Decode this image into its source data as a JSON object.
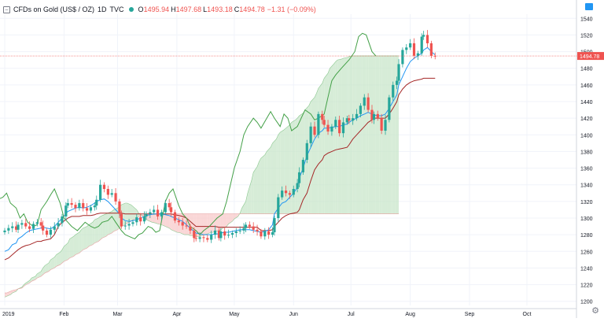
{
  "header": {
    "symbol": "CFDs on Gold (US$ / OZ)",
    "interval": "1D",
    "source": "TVC",
    "open_label": "O",
    "open": "1495.94",
    "high_label": "H",
    "high": "1497.68",
    "low_label": "L",
    "low": "1493.18",
    "close_label": "C",
    "close": "1494.78",
    "change": "−1.31 (−0.09%)"
  },
  "colors": {
    "up": "#26a69a",
    "down": "#ef5350",
    "tenkan": "#2196f3",
    "kijun": "#a52727",
    "lagging": "#43a047",
    "cloud_bull": "#c8e6c9",
    "cloud_bear": "#f8c9c9",
    "price_tag": "#ef5350",
    "grid": "#f0f3fa"
  },
  "icons": [
    "collapse-icon",
    "status-dot-icon",
    "gear-icon"
  ],
  "chart_data": {
    "type": "candlestick",
    "title": "CFDs on Gold (US$ / OZ)",
    "ylim": [
      1195,
      1545
    ],
    "y_ticks": [
      1200,
      1220,
      1240,
      1260,
      1280,
      1300,
      1320,
      1340,
      1360,
      1380,
      1400,
      1420,
      1440,
      1460,
      1480,
      1500,
      1520,
      1540
    ],
    "x_axis_labels": [
      "2019",
      "Feb",
      "Mar",
      "Apr",
      "May",
      "Jun",
      "Jul",
      "Aug",
      "Sep",
      "Oct"
    ],
    "x_axis_dates": [
      "2019-01-01",
      "2019-02-01",
      "2019-03-01",
      "2019-04-01",
      "2019-05-01",
      "2019-06-01",
      "2019-07-01",
      "2019-08-01",
      "2019-09-01",
      "2019-10-01"
    ],
    "last_price": "1494.78",
    "last_value": 1494.78,
    "grid": true,
    "candles": {
      "start_date": "2019-01-01",
      "bar_interval": "1D",
      "close": [
        1285,
        1288,
        1290,
        1286,
        1292,
        1294,
        1290,
        1287,
        1293,
        1295,
        1291,
        1285,
        1280,
        1286,
        1290,
        1294,
        1302,
        1315,
        1318,
        1316,
        1312,
        1318,
        1312,
        1309,
        1313,
        1315,
        1322,
        1340,
        1335,
        1328,
        1330,
        1320,
        1305,
        1290,
        1291,
        1293,
        1295,
        1301,
        1296,
        1302,
        1305,
        1307,
        1310,
        1302,
        1307,
        1318,
        1313,
        1307,
        1297,
        1295,
        1291,
        1290,
        1285,
        1276,
        1275,
        1277,
        1276,
        1274,
        1280,
        1285,
        1276,
        1284,
        1279,
        1280,
        1282,
        1284,
        1285,
        1288,
        1292,
        1290,
        1286,
        1284,
        1278,
        1284,
        1280,
        1283,
        1300,
        1325,
        1333,
        1330,
        1328,
        1335,
        1342,
        1355,
        1370,
        1390,
        1410,
        1400,
        1425,
        1418,
        1412,
        1404,
        1410,
        1418,
        1402,
        1415,
        1420,
        1417,
        1420,
        1425,
        1435,
        1445,
        1430,
        1418,
        1425,
        1420,
        1405,
        1418,
        1445,
        1460,
        1465,
        1485,
        1502,
        1505,
        1510,
        1495,
        1498,
        1518,
        1520,
        1510,
        1495,
        1494.78
      ]
    },
    "lagging_span": [
      1318,
      1322,
      1325,
      1330,
      1318,
      1312,
      1300,
      1305,
      1295,
      1290,
      1292,
      1310,
      1320,
      1328,
      1335,
      1318,
      1300,
      1295,
      1290,
      1285,
      1290,
      1295,
      1290,
      1288,
      1290,
      1295,
      1297,
      1302,
      1295,
      1285,
      1280,
      1278,
      1275,
      1280,
      1282,
      1290,
      1288,
      1283,
      1285,
      1320,
      1330,
      1335,
      1315,
      1305,
      1300,
      1290,
      1285,
      1280,
      1285,
      1290,
      1295,
      1300,
      1305,
      1320,
      1340,
      1360,
      1380,
      1400,
      1410,
      1420,
      1415,
      1408,
      1420,
      1428,
      1420,
      1410,
      1425,
      1420,
      1405,
      1410,
      1420,
      1430,
      1425,
      1418,
      1420,
      1425,
      1445,
      1465,
      1472,
      1480,
      1485,
      1490,
      1500,
      1518,
      1522,
      1520,
      1500,
      1494.78
    ],
    "lagging_start_date": "2018-12-26",
    "tenkan": {
      "start_date": "2019-01-01",
      "values": [
        1260,
        1262,
        1268,
        1270,
        1275,
        1278,
        1282,
        1285,
        1286,
        1287,
        1288,
        1289,
        1288,
        1287,
        1290,
        1295,
        1300,
        1305,
        1308,
        1310,
        1312,
        1313,
        1312,
        1313,
        1315,
        1318,
        1320,
        1322,
        1323,
        1320,
        1315,
        1310,
        1305,
        1300,
        1297,
        1296,
        1297,
        1298,
        1300,
        1302,
        1303,
        1304,
        1305,
        1305,
        1305,
        1304,
        1303,
        1302,
        1300,
        1298,
        1296,
        1292,
        1288,
        1284,
        1282,
        1281,
        1280,
        1280,
        1280,
        1281,
        1281,
        1282,
        1283,
        1283,
        1284,
        1285,
        1286,
        1286,
        1286,
        1286,
        1285,
        1284,
        1283,
        1284,
        1286,
        1292,
        1305,
        1312,
        1318,
        1320,
        1325,
        1330,
        1337,
        1348,
        1360,
        1375,
        1385,
        1395,
        1402,
        1405,
        1408,
        1408,
        1409,
        1410,
        1410,
        1412,
        1413,
        1415,
        1418,
        1420,
        1423,
        1425,
        1427,
        1425,
        1424,
        1423,
        1423,
        1425,
        1432,
        1440,
        1448,
        1460,
        1470,
        1480,
        1488,
        1492,
        1495,
        1498,
        1502,
        1505,
        1500,
        1496
      ]
    },
    "kijun": {
      "start_date": "2019-01-01",
      "values": [
        1250,
        1252,
        1256,
        1260,
        1262,
        1265,
        1267,
        1268,
        1270,
        1272,
        1272,
        1273,
        1274,
        1275,
        1280,
        1290,
        1295,
        1298,
        1300,
        1302,
        1302,
        1302,
        1303,
        1303,
        1303,
        1304,
        1305,
        1306,
        1306,
        1306,
        1306,
        1306,
        1306,
        1306,
        1305,
        1305,
        1305,
        1305,
        1305,
        1305,
        1305,
        1305,
        1305,
        1305,
        1305,
        1305,
        1305,
        1305,
        1304,
        1303,
        1302,
        1300,
        1296,
        1292,
        1290,
        1290,
        1290,
        1290,
        1290,
        1290,
        1289,
        1289,
        1289,
        1289,
        1289,
        1289,
        1289,
        1289,
        1289,
        1289,
        1289,
        1289,
        1285,
        1285,
        1285,
        1286,
        1290,
        1295,
        1300,
        1303,
        1305,
        1306,
        1307,
        1310,
        1322,
        1330,
        1345,
        1358,
        1365,
        1370,
        1375,
        1378,
        1380,
        1382,
        1383,
        1384,
        1385,
        1388,
        1395,
        1400,
        1405,
        1410,
        1415,
        1418,
        1420,
        1420,
        1420,
        1420,
        1425,
        1432,
        1440,
        1448,
        1455,
        1460,
        1463,
        1465,
        1466,
        1467,
        1468,
        1468,
        1468,
        1468
      ]
    },
    "cloud": {
      "start_date": "2019-01-01",
      "span_a": [
        1205,
        1206,
        1208,
        1210,
        1212,
        1215,
        1217,
        1220,
        1222,
        1225,
        1228,
        1230,
        1233,
        1236,
        1240,
        1243,
        1246,
        1250,
        1253,
        1256,
        1259,
        1262,
        1266,
        1270,
        1275,
        1278,
        1280,
        1283,
        1286,
        1288,
        1290,
        1292,
        1295,
        1298,
        1300,
        1302,
        1303,
        1305,
        1306,
        1308,
        1310,
        1312,
        1314,
        1316,
        1318,
        1318,
        1316,
        1314,
        1310,
        1306,
        1303,
        1300,
        1298,
        1296,
        1295,
        1294,
        1293,
        1292,
        1291,
        1290,
        1288,
        1286,
        1284,
        1283,
        1282,
        1281,
        1280,
        1280,
        1279,
        1279,
        1278,
        1278,
        1279,
        1280,
        1281,
        1282,
        1283,
        1284,
        1285,
        1286,
        1288,
        1290,
        1293,
        1296,
        1299,
        1302,
        1306,
        1312,
        1320,
        1330,
        1345,
        1355,
        1362,
        1368,
        1372,
        1376,
        1380,
        1385,
        1390,
        1395,
        1400,
        1403,
        1406,
        1408,
        1412,
        1415,
        1418,
        1420,
        1423,
        1426,
        1430,
        1435,
        1440,
        1445,
        1450,
        1456,
        1462,
        1468,
        1474,
        1480,
        1485,
        1488,
        1490,
        1491,
        1492,
        1493,
        1494,
        1495,
        1495,
        1495,
        1495,
        1495,
        1495,
        1495,
        1495,
        1495,
        1495,
        1495,
        1495,
        1495,
        1495,
        1495,
        1495,
        1495,
        1495
      ],
      "span_b": [
        1210,
        1210,
        1212,
        1213,
        1214,
        1215,
        1216,
        1218,
        1220,
        1222,
        1224,
        1226,
        1228,
        1230,
        1232,
        1234,
        1236,
        1238,
        1240,
        1242,
        1244,
        1246,
        1248,
        1250,
        1252,
        1254,
        1256,
        1258,
        1260,
        1262,
        1264,
        1266,
        1268,
        1270,
        1272,
        1274,
        1276,
        1278,
        1280,
        1282,
        1284,
        1286,
        1288,
        1290,
        1292,
        1294,
        1296,
        1298,
        1300,
        1302,
        1303,
        1304,
        1305,
        1305,
        1305,
        1305,
        1305,
        1305,
        1305,
        1305,
        1305,
        1305,
        1305,
        1305,
        1305,
        1305,
        1305,
        1305,
        1305,
        1305,
        1305,
        1305,
        1305,
        1305,
        1305,
        1305,
        1305,
        1305,
        1305,
        1305,
        1305,
        1305,
        1305,
        1305,
        1305,
        1305,
        1305,
        1305,
        1305,
        1305,
        1305,
        1305,
        1305,
        1305,
        1305,
        1305,
        1305,
        1305,
        1305,
        1305,
        1305,
        1305,
        1305,
        1305,
        1305,
        1305,
        1305,
        1305,
        1305,
        1305,
        1305,
        1305,
        1305,
        1305,
        1305,
        1305,
        1305,
        1305,
        1305,
        1305,
        1305,
        1305,
        1305,
        1305,
        1305,
        1305,
        1305,
        1305,
        1305,
        1305,
        1305,
        1305,
        1305,
        1305,
        1305,
        1305,
        1305,
        1305,
        1305,
        1305,
        1305,
        1305,
        1305,
        1305,
        1305
      ]
    }
  }
}
